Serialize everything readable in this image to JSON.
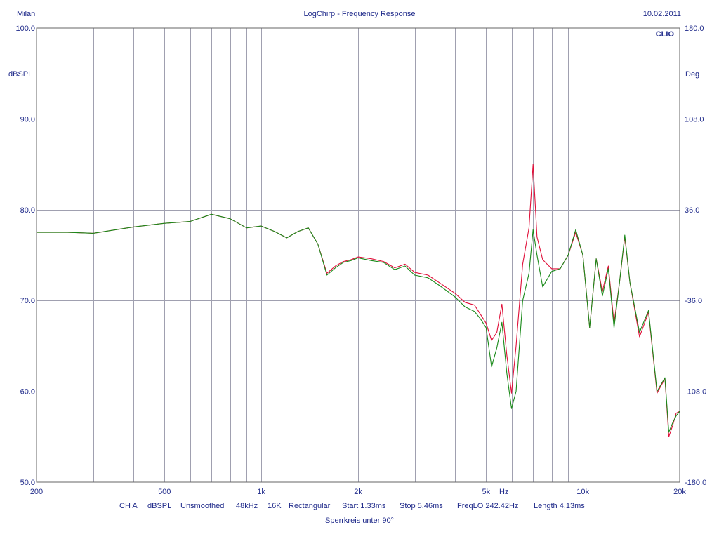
{
  "header": {
    "left": "Milan",
    "center": "LogChirp - Frequency Response",
    "right": "10.02.2011"
  },
  "brand": "CLIO",
  "footer": {
    "line1": [
      "CH A",
      "dBSPL",
      "Unsmoothed",
      "48kHz",
      "16K",
      "Rectangular",
      "Start 1.33ms",
      "Stop 5.46ms",
      "FreqLO 242.42Hz",
      "Length 4.13ms"
    ],
    "line2": "Sperrkreis unter 90°"
  },
  "chart_data": {
    "type": "line",
    "title": "LogChirp - Frequency Response",
    "xlabel": "Hz",
    "ylabel": "dBSPL",
    "y2label": "Deg",
    "xscale": "log",
    "xlim": [
      200,
      20000
    ],
    "ylim": [
      50,
      100
    ],
    "y2lim": [
      -180,
      180
    ],
    "grid": true,
    "x_ticks": [
      200,
      500,
      1000,
      2000,
      5000,
      10000,
      20000
    ],
    "x_tick_labels": [
      "200",
      "500",
      "1k",
      "2k",
      "5k",
      "10k",
      "20k"
    ],
    "y_ticks": [
      50,
      60,
      70,
      80,
      90,
      100
    ],
    "y_tick_labels": [
      "50.0",
      "60.0",
      "70.0",
      "80.0",
      "90.0",
      "100.0"
    ],
    "y2_ticks": [
      -180,
      -108,
      -36,
      36,
      108,
      180
    ],
    "y2_tick_labels": [
      "-180.0",
      "-108.0",
      "-36.0",
      "36.0",
      "108.0",
      "180.0"
    ],
    "series": [
      {
        "color": "#e0103a",
        "points": [
          [
            200,
            77.5
          ],
          [
            250,
            77.5
          ],
          [
            300,
            77.4
          ],
          [
            400,
            78.1
          ],
          [
            500,
            78.5
          ],
          [
            600,
            78.7
          ],
          [
            700,
            79.5
          ],
          [
            800,
            79.0
          ],
          [
            900,
            78.0
          ],
          [
            1000,
            78.2
          ],
          [
            1100,
            77.6
          ],
          [
            1200,
            76.9
          ],
          [
            1300,
            77.6
          ],
          [
            1400,
            78.0
          ],
          [
            1500,
            76.2
          ],
          [
            1600,
            73.0
          ],
          [
            1700,
            73.8
          ],
          [
            1800,
            74.3
          ],
          [
            1900,
            74.5
          ],
          [
            2000,
            74.8
          ],
          [
            2200,
            74.6
          ],
          [
            2400,
            74.3
          ],
          [
            2600,
            73.6
          ],
          [
            2800,
            74.0
          ],
          [
            3000,
            73.1
          ],
          [
            3300,
            72.8
          ],
          [
            3600,
            71.9
          ],
          [
            4000,
            70.8
          ],
          [
            4300,
            69.8
          ],
          [
            4600,
            69.5
          ],
          [
            4800,
            68.5
          ],
          [
            5000,
            67.5
          ],
          [
            5200,
            65.6
          ],
          [
            5400,
            66.5
          ],
          [
            5600,
            69.6
          ],
          [
            5800,
            64.0
          ],
          [
            6000,
            59.8
          ],
          [
            6200,
            65.0
          ],
          [
            6500,
            74.0
          ],
          [
            6800,
            78.0
          ],
          [
            7000,
            85.0
          ],
          [
            7200,
            77.0
          ],
          [
            7500,
            74.5
          ],
          [
            8000,
            73.5
          ],
          [
            8500,
            73.5
          ],
          [
            9000,
            75.0
          ],
          [
            9500,
            77.5
          ],
          [
            10000,
            75.0
          ],
          [
            10500,
            67.0
          ],
          [
            11000,
            74.6
          ],
          [
            11500,
            71.0
          ],
          [
            12000,
            73.8
          ],
          [
            12500,
            67.5
          ],
          [
            13000,
            72.0
          ],
          [
            13500,
            77.0
          ],
          [
            14000,
            72.0
          ],
          [
            15000,
            66.0
          ],
          [
            16000,
            68.7
          ],
          [
            17000,
            59.8
          ],
          [
            18000,
            61.4
          ],
          [
            18500,
            55.0
          ],
          [
            19000,
            56.2
          ],
          [
            19500,
            57.6
          ],
          [
            20000,
            57.8
          ]
        ]
      },
      {
        "color": "#1a8a1a",
        "points": [
          [
            200,
            77.5
          ],
          [
            250,
            77.5
          ],
          [
            300,
            77.4
          ],
          [
            400,
            78.1
          ],
          [
            500,
            78.5
          ],
          [
            600,
            78.7
          ],
          [
            700,
            79.5
          ],
          [
            800,
            79.0
          ],
          [
            900,
            78.0
          ],
          [
            1000,
            78.2
          ],
          [
            1100,
            77.6
          ],
          [
            1200,
            76.9
          ],
          [
            1300,
            77.6
          ],
          [
            1400,
            78.0
          ],
          [
            1500,
            76.2
          ],
          [
            1600,
            72.8
          ],
          [
            1700,
            73.6
          ],
          [
            1800,
            74.2
          ],
          [
            1900,
            74.4
          ],
          [
            2000,
            74.7
          ],
          [
            2200,
            74.4
          ],
          [
            2400,
            74.2
          ],
          [
            2600,
            73.4
          ],
          [
            2800,
            73.8
          ],
          [
            3000,
            72.8
          ],
          [
            3300,
            72.5
          ],
          [
            3600,
            71.6
          ],
          [
            4000,
            70.4
          ],
          [
            4300,
            69.3
          ],
          [
            4600,
            68.8
          ],
          [
            4800,
            68.0
          ],
          [
            5000,
            67.0
          ],
          [
            5200,
            62.7
          ],
          [
            5400,
            64.8
          ],
          [
            5600,
            67.6
          ],
          [
            5800,
            62.0
          ],
          [
            6000,
            58.1
          ],
          [
            6200,
            60.0
          ],
          [
            6500,
            70.0
          ],
          [
            6800,
            73.0
          ],
          [
            7000,
            77.8
          ],
          [
            7200,
            75.0
          ],
          [
            7500,
            71.5
          ],
          [
            8000,
            73.2
          ],
          [
            8500,
            73.5
          ],
          [
            9000,
            75.0
          ],
          [
            9500,
            77.8
          ],
          [
            10000,
            75.0
          ],
          [
            10500,
            67.0
          ],
          [
            11000,
            74.6
          ],
          [
            11500,
            70.5
          ],
          [
            12000,
            73.5
          ],
          [
            12500,
            67.0
          ],
          [
            13000,
            72.0
          ],
          [
            13500,
            77.2
          ],
          [
            14000,
            72.0
          ],
          [
            15000,
            66.5
          ],
          [
            16000,
            68.9
          ],
          [
            17000,
            60.0
          ],
          [
            18000,
            61.5
          ],
          [
            18500,
            55.5
          ],
          [
            19000,
            56.5
          ],
          [
            19500,
            57.3
          ],
          [
            20000,
            57.8
          ]
        ]
      }
    ]
  }
}
